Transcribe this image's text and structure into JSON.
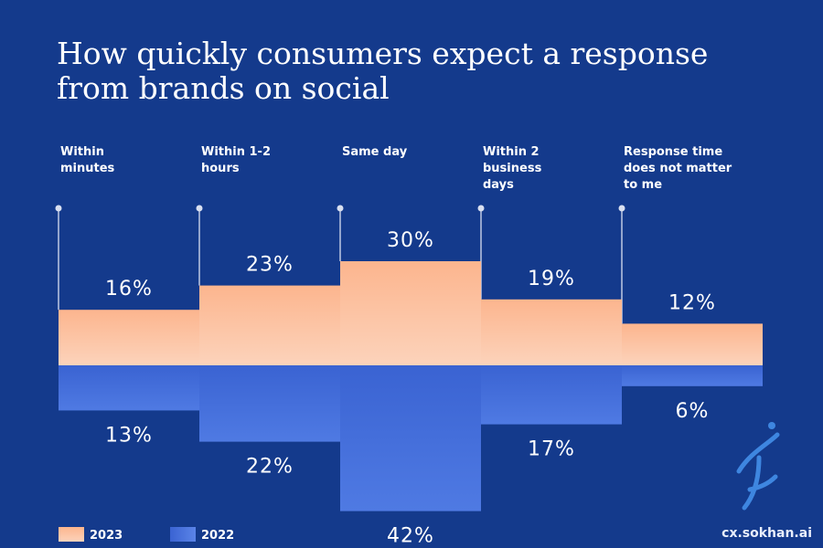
{
  "chart_data": {
    "type": "bar",
    "title": "How quickly consumers expect a response from brands on social",
    "categories": [
      [
        "Within",
        "minutes"
      ],
      [
        "Within 1-2",
        "hours"
      ],
      [
        "Same day"
      ],
      [
        "Within 2",
        "business",
        "days"
      ],
      [
        "Response time",
        "does not matter",
        "to me"
      ]
    ],
    "series": [
      {
        "name": "2023",
        "values": [
          16,
          23,
          30,
          19,
          12
        ],
        "color": "#fbb894"
      },
      {
        "name": "2022",
        "values": [
          13,
          22,
          42,
          17,
          6
        ],
        "color": "#3f67d4"
      }
    ],
    "value_suffix": "%",
    "ylim": [
      0,
      42
    ]
  },
  "colors": {
    "background": "#143a8c",
    "stem": "#d9dff0"
  },
  "brand": {
    "text": "cx.sokhan.ai"
  }
}
